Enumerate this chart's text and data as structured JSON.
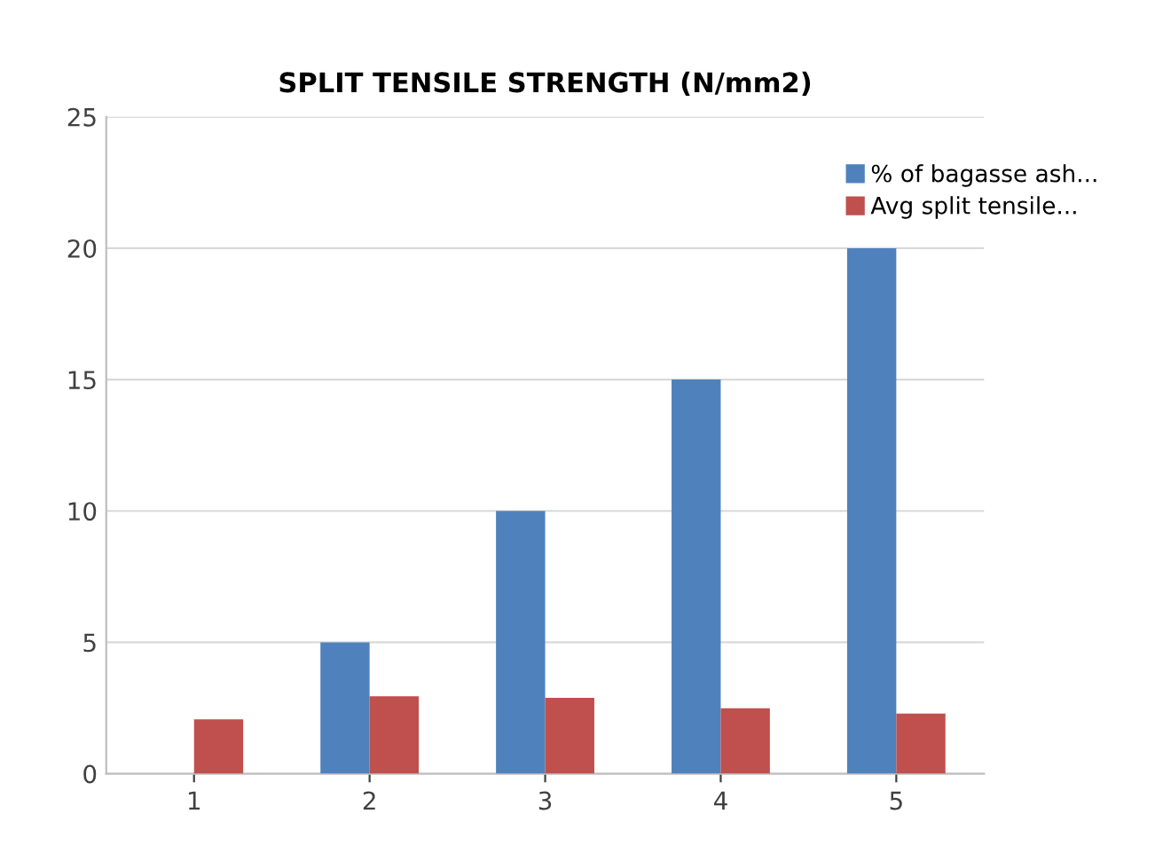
{
  "chart_data": {
    "type": "bar",
    "title": "SPLIT TENSILE STRENGTH (N/mm2)",
    "categories": [
      "1",
      "2",
      "3",
      "4",
      "5"
    ],
    "series": [
      {
        "name": "% of bagasse ash...",
        "color": "#4f81bd",
        "values": [
          0,
          5,
          10,
          15,
          20
        ]
      },
      {
        "name": "Avg split tensile...",
        "color": "#c0504d",
        "values": [
          2.07,
          2.95,
          2.89,
          2.49,
          2.29
        ]
      }
    ],
    "ylim": [
      0,
      25
    ],
    "yticks": [
      0,
      5,
      10,
      15,
      20,
      25
    ],
    "grid": "y",
    "legend": "top right"
  }
}
